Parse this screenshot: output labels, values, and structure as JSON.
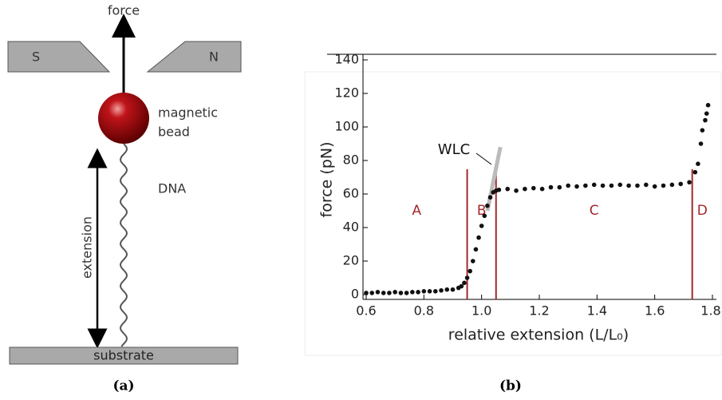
{
  "diagram": {
    "force_label": "force",
    "magnet_south": "S",
    "magnet_north": "N",
    "bead_label": [
      "magnetic",
      "bead"
    ],
    "dna_label": "DNA",
    "extension_label": "extension",
    "substrate_label": "substrate",
    "caption": "(a)"
  },
  "chart_data": {
    "type": "scatter",
    "caption": "(b)",
    "x_label": "relative extension (L/L₀)",
    "y_label": "force (pN)",
    "xlim": [
      0.6,
      1.8
    ],
    "ylim": [
      0,
      140
    ],
    "xticks": [
      0.6,
      0.8,
      {
        "value": 1,
        "label": "1.0"
      },
      1.2,
      1.4,
      1.6,
      1.8
    ],
    "yticks": [
      0,
      20,
      40,
      60,
      80,
      100,
      120,
      140
    ],
    "color": "#111111",
    "x": [
      0.6,
      0.62,
      0.64,
      0.66,
      0.68,
      0.7,
      0.72,
      0.74,
      0.76,
      0.78,
      0.8,
      0.82,
      0.84,
      0.86,
      0.88,
      0.9,
      0.92,
      0.93,
      0.94,
      0.95,
      0.96,
      0.97,
      0.98,
      0.99,
      1.0,
      1.01,
      1.02,
      1.03,
      1.04,
      1.05,
      1.06,
      1.09,
      1.12,
      1.15,
      1.18,
      1.21,
      1.24,
      1.27,
      1.3,
      1.33,
      1.36,
      1.39,
      1.42,
      1.45,
      1.48,
      1.51,
      1.54,
      1.57,
      1.6,
      1.63,
      1.66,
      1.69,
      1.72,
      1.74,
      1.75,
      1.76,
      1.765,
      1.775,
      1.78,
      1.785
    ],
    "values": [
      1,
      1,
      1.5,
      1,
      1,
      1.5,
      1,
      1,
      1.5,
      1.5,
      2,
      2,
      2,
      2.5,
      3,
      3,
      4,
      5,
      7,
      10,
      14,
      20,
      27,
      34,
      41,
      47,
      53,
      58,
      61,
      62,
      62.5,
      63,
      62,
      63,
      63.5,
      63,
      64,
      64,
      65,
      64.5,
      65,
      65.5,
      65,
      65,
      65.5,
      65,
      65,
      65.5,
      64.5,
      65,
      65.5,
      66,
      67,
      73,
      78,
      90,
      98,
      104,
      108,
      113
    ],
    "regions": {
      "labels": [
        "A",
        "B",
        "C",
        "D"
      ],
      "bounds": [
        0.95,
        1.05,
        1.73
      ],
      "color": "#a3282a"
    },
    "wlc": {
      "label": "WLC",
      "x": [
        1.02,
        1.065
      ],
      "y": [
        50,
        88
      ],
      "color": "#bbbbbb"
    }
  }
}
